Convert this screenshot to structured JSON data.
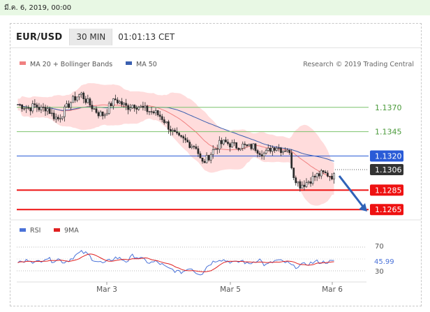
{
  "timestamp": "มี.ค. 6, 2019, 00:00",
  "header": {
    "symbol": "EUR/USD",
    "timeframe": "30 MIN",
    "clock": "01:01:13 CET"
  },
  "legend": {
    "bollinger": "MA 20 + Bollinger Bands",
    "ma50": "MA 50",
    "credit": "Research © 2019 Trading Central"
  },
  "rsi_legend": {
    "rsi": "RSI",
    "ma9": "9MA"
  },
  "colors": {
    "candle": "#2b2b2b",
    "bands": "#ffd6d6",
    "ma20": "#f08080",
    "ma50": "#3a5fb0",
    "resistance": "#7cc36b",
    "pivot": "#2a5bd7",
    "support": "#ee1111",
    "current": "#333333",
    "rsi": "#4a72d8",
    "rsi_ma": "#e02020",
    "arrow": "#2f62b8"
  },
  "chart_data": {
    "type": "candlestick",
    "x_tick_labels": [
      "Mar 3",
      "Mar 5",
      "Mar 6"
    ],
    "y_levels": [
      {
        "value": 1.137,
        "label": "1.1370",
        "kind": "resistance"
      },
      {
        "value": 1.1345,
        "label": "1.1345",
        "kind": "resistance"
      },
      {
        "value": 1.132,
        "label": "1.1320",
        "kind": "pivot"
      },
      {
        "value": 1.1306,
        "label": "1.1306",
        "kind": "current"
      },
      {
        "value": 1.1285,
        "label": "1.1285",
        "kind": "support"
      },
      {
        "value": 1.1265,
        "label": "1.1265",
        "kind": "support"
      }
    ],
    "ylim": [
      1.1258,
      1.1405
    ],
    "close_path": [
      1.1373,
      1.1371,
      1.1369,
      1.1372,
      1.1368,
      1.137,
      1.1362,
      1.1358,
      1.1366,
      1.1374,
      1.138,
      1.1384,
      1.1376,
      1.137,
      1.1364,
      1.1362,
      1.1372,
      1.1378,
      1.1374,
      1.137,
      1.1373,
      1.1371,
      1.1368,
      1.1366,
      1.1364,
      1.136,
      1.1352,
      1.1344,
      1.1338,
      1.1336,
      1.1332,
      1.133,
      1.1312,
      1.1318,
      1.1326,
      1.1332,
      1.1334,
      1.1332,
      1.133,
      1.1331,
      1.1329,
      1.133,
      1.1325,
      1.1322,
      1.1328,
      1.133,
      1.1326,
      1.1328,
      1.13,
      1.129,
      1.1292,
      1.1296,
      1.13,
      1.1302,
      1.1301,
      1.1299
    ],
    "rsi": {
      "labels": [
        "70",
        "30"
      ],
      "value_label": "45.99",
      "value": 45.99,
      "ylim": [
        20,
        80
      ],
      "path": [
        46,
        45,
        50,
        44,
        48,
        52,
        47,
        50,
        45,
        49,
        55,
        60,
        58,
        50,
        46,
        43,
        48,
        52,
        50,
        46,
        55,
        52,
        48,
        44,
        46,
        42,
        36,
        34,
        30,
        32,
        38,
        30,
        28,
        40,
        46,
        50,
        48,
        46,
        44,
        48,
        42,
        46,
        50,
        40,
        44,
        48,
        46,
        44,
        38,
        40,
        42,
        44,
        46,
        45,
        46,
        46
      ]
    }
  }
}
